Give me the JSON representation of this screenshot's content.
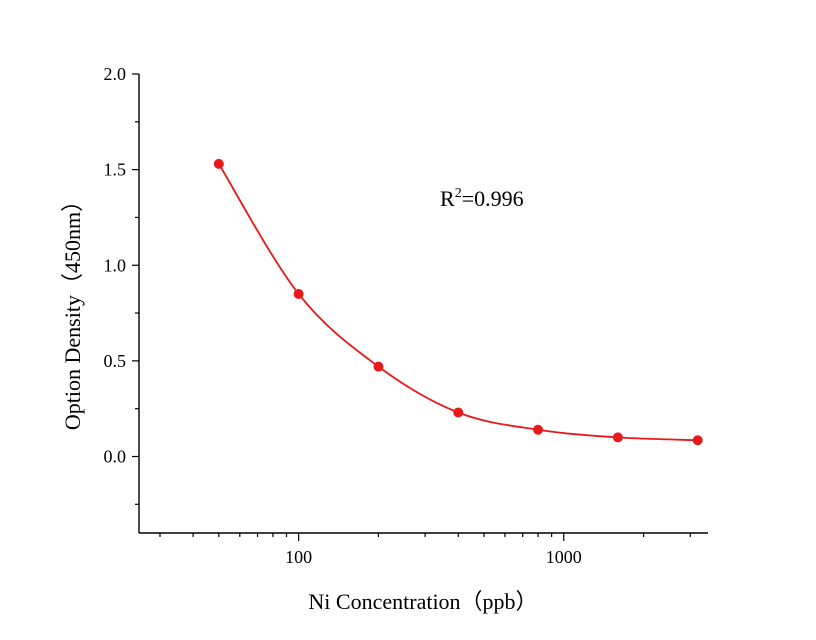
{
  "chart_data": {
    "type": "scatter",
    "xlabel": "Ni Concentration（ppb）",
    "ylabel": "Option Density（450nm）",
    "x_scale": "log",
    "xlim": [
      25,
      3500
    ],
    "ylim": [
      -0.4,
      2.0
    ],
    "x_ticks": [
      100,
      1000
    ],
    "x_tick_labels": [
      "100",
      "1000"
    ],
    "y_ticks": [
      0.0,
      0.5,
      1.0,
      1.5,
      2.0
    ],
    "y_tick_labels": [
      "0.0",
      "0.5",
      "1.0",
      "1.5",
      "2.0"
    ],
    "grid": false,
    "annotation": {
      "base": "R",
      "sup": "2",
      "rest": "=0.996"
    },
    "colors": {
      "series": "#e8191a",
      "axis": "#000000"
    },
    "series": [
      {
        "x": [
          50,
          100,
          200,
          400,
          800,
          1600,
          3200
        ],
        "y": [
          1.53,
          0.85,
          0.47,
          0.23,
          0.14,
          0.1,
          0.085
        ],
        "fit": "smooth-curve"
      }
    ]
  }
}
